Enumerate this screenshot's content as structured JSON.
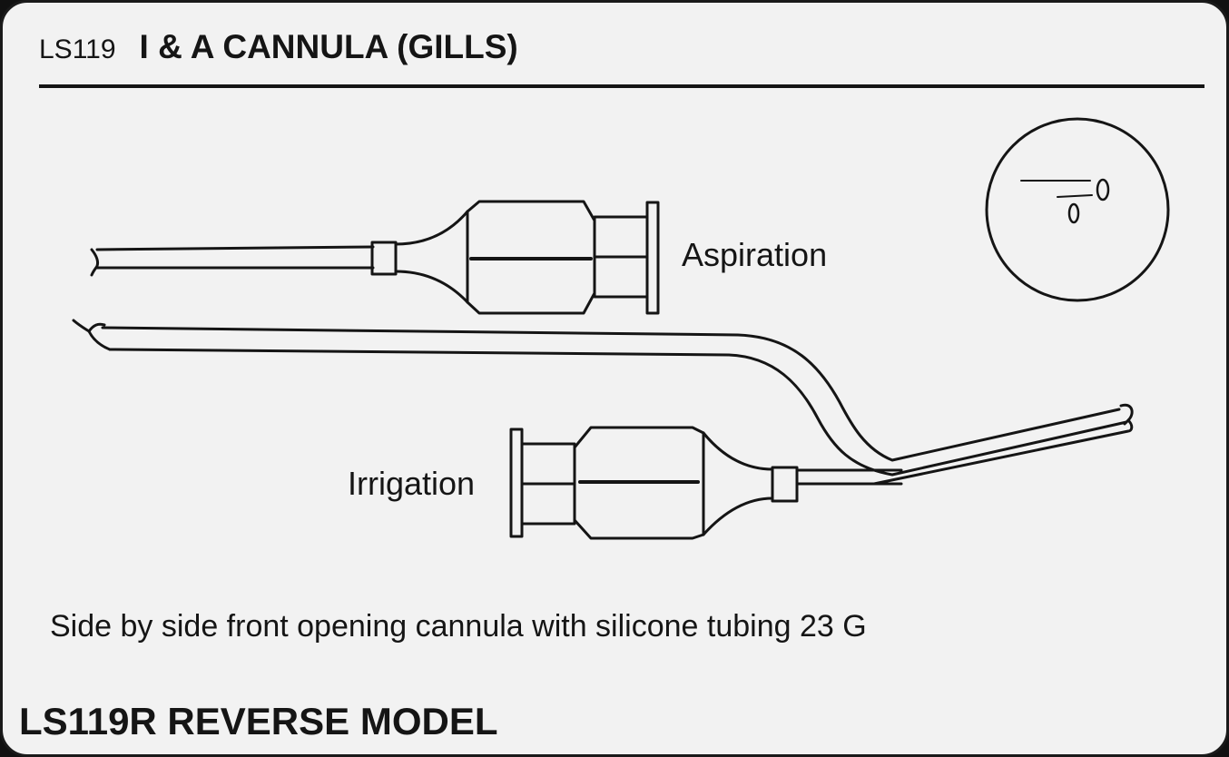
{
  "header": {
    "code": "LS119",
    "title": "I & A CANNULA (GILLS)"
  },
  "diagram": {
    "label_aspiration": "Aspiration",
    "label_irrigation": "Irrigation"
  },
  "caption": "Side by side front opening cannula with silicone tubing 23 G",
  "footer": {
    "model": "LS119R REVERSE MODEL"
  }
}
